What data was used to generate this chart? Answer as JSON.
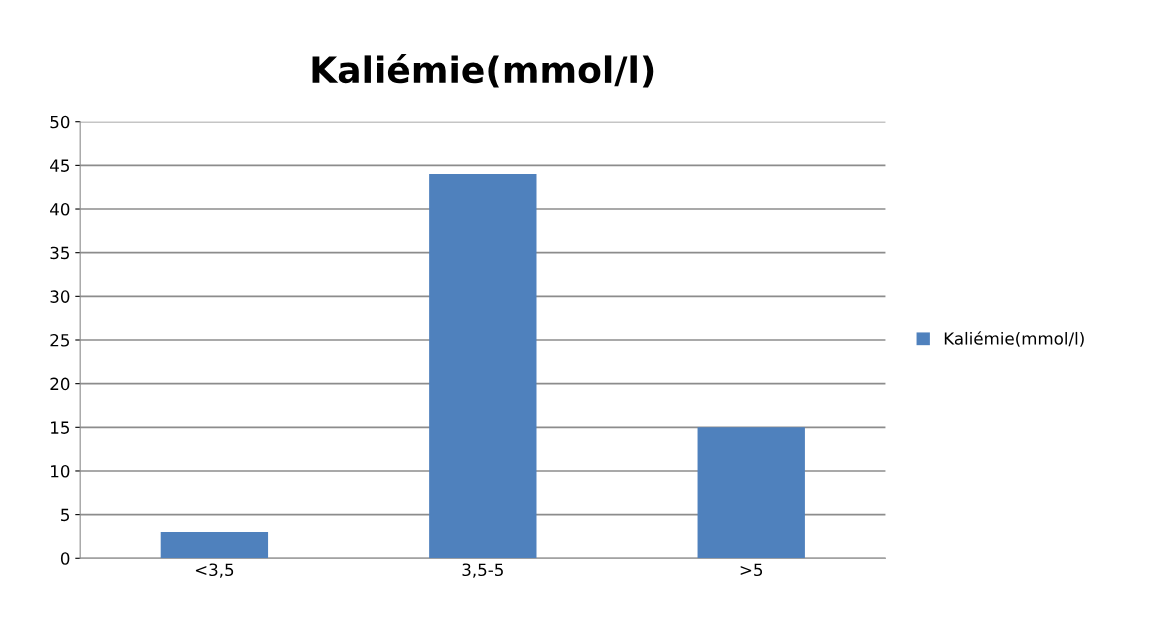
{
  "chart_data": {
    "type": "bar",
    "title": "Kaliémie(mmol/l)",
    "categories": [
      "<3,5",
      "3,5-5",
      ">5"
    ],
    "series": [
      {
        "name": "Kaliémie(mmol/l)",
        "color": "#4f81bd",
        "values": [
          3,
          44,
          15
        ]
      }
    ],
    "ylim": [
      0,
      50
    ],
    "yticks": [
      0,
      5,
      10,
      15,
      20,
      25,
      30,
      35,
      40,
      45,
      50
    ],
    "grid": "y",
    "legend": "right"
  }
}
